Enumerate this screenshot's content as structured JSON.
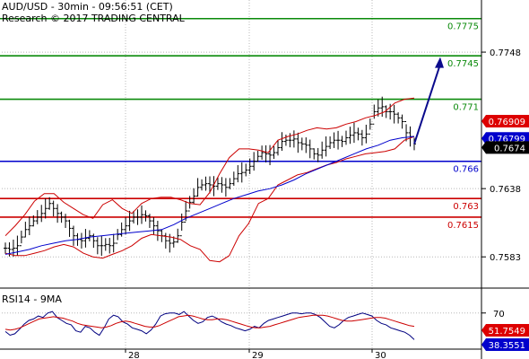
{
  "header": {
    "title": "AUD/USD - 30min - 09:56:51 (CET)",
    "subtitle": "Research © 2017 TRADING CENTRAL"
  },
  "colors": {
    "green": "#0a8a0a",
    "blue": "#0000cc",
    "red": "#cc0000",
    "band": "#cc0000",
    "ma": "#0000cc",
    "price": "#000000",
    "arrow": "#0a0a8c",
    "rsi": "#000080",
    "rsi_ma": "#cc0000",
    "grid": "#b8b8b8",
    "badge_red": "#dd0000",
    "badge_blue": "#0000cc",
    "badge_black": "#000000"
  },
  "chart_data": [
    {
      "type": "line",
      "panel": "price",
      "instrument": "AUD/USD",
      "timeframe": "30min",
      "x_labels": [
        "28",
        "29",
        "30"
      ],
      "y_ticks": [
        "0.7748",
        "0.7638",
        "0.7583"
      ],
      "y_range": [
        0.756,
        0.779
      ],
      "levels": [
        {
          "label": "0.7775",
          "value": 0.7775,
          "color": "green"
        },
        {
          "label": "0.7745",
          "value": 0.7745,
          "color": "green"
        },
        {
          "label": "0.771",
          "value": 0.771,
          "color": "green"
        },
        {
          "label": "0.766",
          "value": 0.766,
          "color": "blue"
        },
        {
          "label": "0.763",
          "value": 0.763,
          "color": "red"
        },
        {
          "label": "0.7615",
          "value": 0.7615,
          "color": "red"
        }
      ],
      "price_badges": [
        {
          "label": "0.76909",
          "value": 0.76909,
          "color": "badge_red"
        },
        {
          "label": "0.76799",
          "value": 0.76799,
          "color": "badge_blue"
        },
        {
          "label": "0.7674",
          "value": 0.7674,
          "color": "badge_black"
        }
      ],
      "series": [
        {
          "style": "bars",
          "values": [
            0.759,
            0.7589,
            0.759,
            0.7592,
            0.7599,
            0.7605,
            0.7608,
            0.7612,
            0.7615,
            0.7618,
            0.7622,
            0.7626,
            0.7622,
            0.7618,
            0.7615,
            0.7612,
            0.7606,
            0.76,
            0.7597,
            0.7596,
            0.7598,
            0.76,
            0.7596,
            0.7592,
            0.7592,
            0.7593,
            0.7592,
            0.7594,
            0.7601,
            0.7605,
            0.7608,
            0.7612,
            0.7615,
            0.7615,
            0.7617,
            0.7616,
            0.7612,
            0.7608,
            0.7604,
            0.76,
            0.7596,
            0.7594,
            0.7595,
            0.76,
            0.7611,
            0.762,
            0.7627,
            0.7632,
            0.7639,
            0.7641,
            0.7642,
            0.7641,
            0.764,
            0.7642,
            0.7641,
            0.7639,
            0.7642,
            0.7646,
            0.765,
            0.7651,
            0.7653,
            0.7656,
            0.766,
            0.7664,
            0.7667,
            0.7666,
            0.7665,
            0.7667,
            0.7671,
            0.7676,
            0.7677,
            0.7677,
            0.7678,
            0.7675,
            0.7674,
            0.7673,
            0.767,
            0.7666,
            0.7665,
            0.7669,
            0.7672,
            0.7675,
            0.7677,
            0.7677,
            0.7676,
            0.7679,
            0.7681,
            0.7683,
            0.7682,
            0.7679,
            0.7682,
            0.769,
            0.77,
            0.7703,
            0.7704,
            0.77,
            0.77,
            0.7698,
            0.7695,
            0.7692,
            0.7683,
            0.768,
            0.7674
          ]
        },
        {
          "name": "bb_upper",
          "style": "line",
          "values": [
            0.76,
            0.7608,
            0.7617,
            0.7628,
            0.7634,
            0.7634,
            0.7627,
            0.7622,
            0.7617,
            0.7614,
            0.7625,
            0.7629,
            0.7622,
            0.7618,
            0.7626,
            0.763,
            0.7631,
            0.7631,
            0.7629,
            0.7626,
            0.7625,
            0.7635,
            0.765,
            0.7663,
            0.767,
            0.767,
            0.7669,
            0.7667,
            0.7677,
            0.768,
            0.7682,
            0.7685,
            0.7687,
            0.7686,
            0.7687,
            0.769,
            0.7692,
            0.7695,
            0.7697,
            0.77,
            0.7707,
            0.771,
            0.7711
          ]
        },
        {
          "name": "bb_lower",
          "style": "line",
          "values": [
            0.7586,
            0.7584,
            0.7584,
            0.7586,
            0.7588,
            0.7591,
            0.7593,
            0.7591,
            0.7586,
            0.7583,
            0.7582,
            0.7585,
            0.7588,
            0.7592,
            0.7598,
            0.7601,
            0.76,
            0.7599,
            0.7597,
            0.7592,
            0.7589,
            0.758,
            0.7579,
            0.7584,
            0.76,
            0.761,
            0.7626,
            0.763,
            0.7641,
            0.7645,
            0.7649,
            0.7651,
            0.7654,
            0.7657,
            0.7659,
            0.7662,
            0.7664,
            0.7666,
            0.7667,
            0.7668,
            0.767,
            0.7677,
            0.768
          ]
        },
        {
          "name": "ma",
          "style": "line",
          "values": [
            0.7585,
            0.7587,
            0.7589,
            0.7592,
            0.7594,
            0.7596,
            0.7597,
            0.7599,
            0.76,
            0.7601,
            0.7602,
            0.7603,
            0.7604,
            0.7605,
            0.7609,
            0.7614,
            0.7618,
            0.7622,
            0.7626,
            0.763,
            0.7633,
            0.7636,
            0.7638,
            0.7641,
            0.7645,
            0.765,
            0.7654,
            0.7658,
            0.7662,
            0.7666,
            0.767,
            0.7673,
            0.7677,
            0.7679,
            0.768
          ]
        },
        {
          "name": "projection",
          "style": "arrow",
          "values": [
            0.7674,
            0.7744
          ]
        }
      ]
    },
    {
      "type": "line",
      "panel": "rsi",
      "title": "RSI14 - 9MA",
      "y_ticks": [
        "70"
      ],
      "y_range": [
        20,
        100
      ],
      "value_badges": [
        {
          "label": "51.7549",
          "value": 51.7549,
          "color": "badge_red"
        },
        {
          "label": "38.3551",
          "value": 38.3551,
          "color": "badge_blue"
        }
      ],
      "series": [
        {
          "name": "rsi",
          "values": [
            45,
            40,
            42,
            48,
            55,
            60,
            62,
            66,
            64,
            70,
            72,
            64,
            60,
            56,
            54,
            46,
            44,
            52,
            50,
            44,
            40,
            50,
            62,
            67,
            65,
            58,
            55,
            50,
            48,
            46,
            42,
            47,
            55,
            66,
            69,
            70,
            70,
            68,
            72,
            66,
            60,
            56,
            58,
            64,
            66,
            63,
            58,
            55,
            53,
            50,
            48,
            46,
            48,
            52,
            50,
            56,
            60,
            62,
            64,
            66,
            68,
            70,
            70,
            69,
            70,
            70,
            68,
            64,
            58,
            52,
            50,
            54,
            60,
            64,
            66,
            68,
            70,
            68,
            66,
            60,
            56,
            54,
            50,
            48,
            46,
            44,
            40,
            34
          ]
        },
        {
          "name": "rsi_ma",
          "values": [
            48,
            47,
            48,
            50,
            53,
            56,
            59,
            62,
            63,
            64,
            65,
            64,
            63,
            61,
            59,
            56,
            54,
            53,
            52,
            51,
            50,
            51,
            53,
            56,
            58,
            59,
            58,
            56,
            54,
            52,
            51,
            51,
            53,
            56,
            59,
            62,
            65,
            66,
            67,
            66,
            64,
            62,
            61,
            61,
            62,
            62,
            61,
            59,
            57,
            55,
            53,
            51,
            50,
            50,
            51,
            52,
            54,
            56,
            58,
            60,
            62,
            64,
            65,
            66,
            67,
            67,
            67,
            66,
            64,
            62,
            60,
            59,
            59,
            60,
            61,
            62,
            63,
            64,
            64,
            63,
            61,
            59,
            57,
            55,
            53,
            52
          ]
        }
      ]
    }
  ]
}
